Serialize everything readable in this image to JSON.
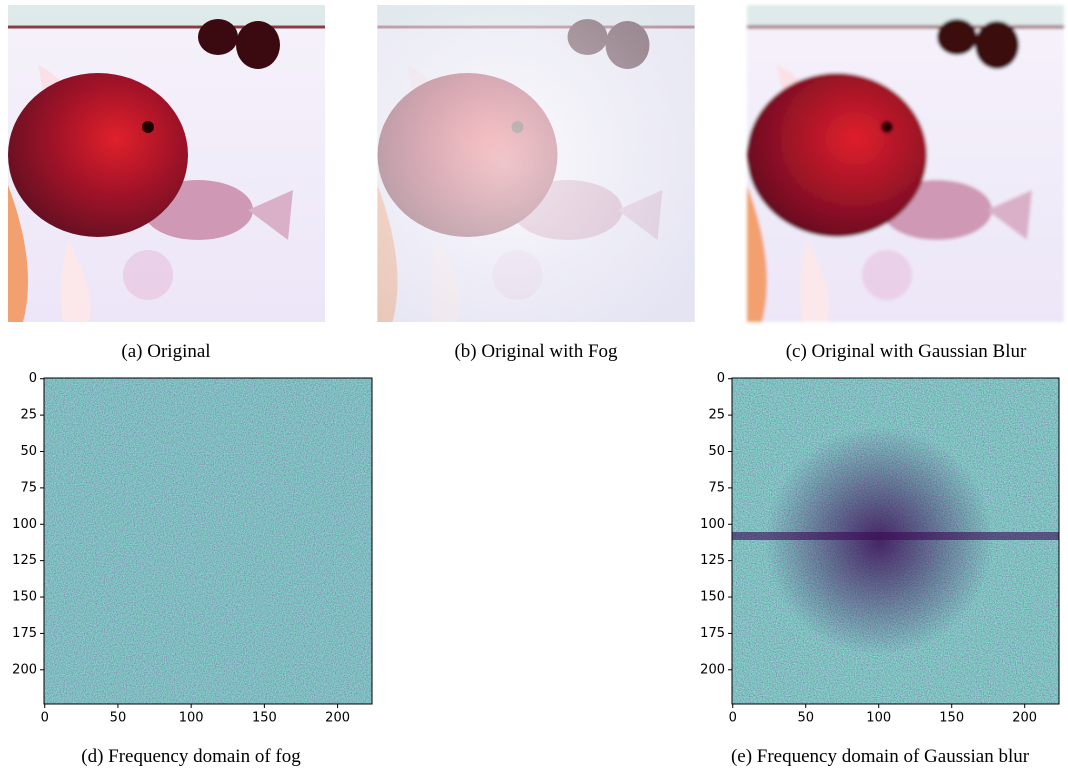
{
  "figure": {
    "photos": [
      {
        "caption": "(a) Original"
      },
      {
        "caption": "(b) Original with Fog"
      },
      {
        "caption": "(c) Original with Gaussian Blur"
      }
    ],
    "frequency_plots": [
      {
        "caption": "(d) Frequency domain of fog",
        "xlim": [
          -0.5,
          223.5
        ],
        "ylim": [
          223.5,
          -0.5
        ],
        "xticks": [
          0,
          50,
          100,
          150,
          200
        ],
        "yticks": [
          0,
          25,
          50,
          75,
          100,
          125,
          150,
          175,
          200
        ]
      },
      {
        "caption": "(e) Frequency domain of Gaussian blur",
        "xlim": [
          -0.5,
          223.5
        ],
        "ylim": [
          223.5,
          -0.5
        ],
        "xticks": [
          0,
          50,
          100,
          150,
          200
        ],
        "yticks": [
          0,
          25,
          50,
          75,
          100,
          125,
          150,
          175,
          200
        ]
      }
    ]
  }
}
